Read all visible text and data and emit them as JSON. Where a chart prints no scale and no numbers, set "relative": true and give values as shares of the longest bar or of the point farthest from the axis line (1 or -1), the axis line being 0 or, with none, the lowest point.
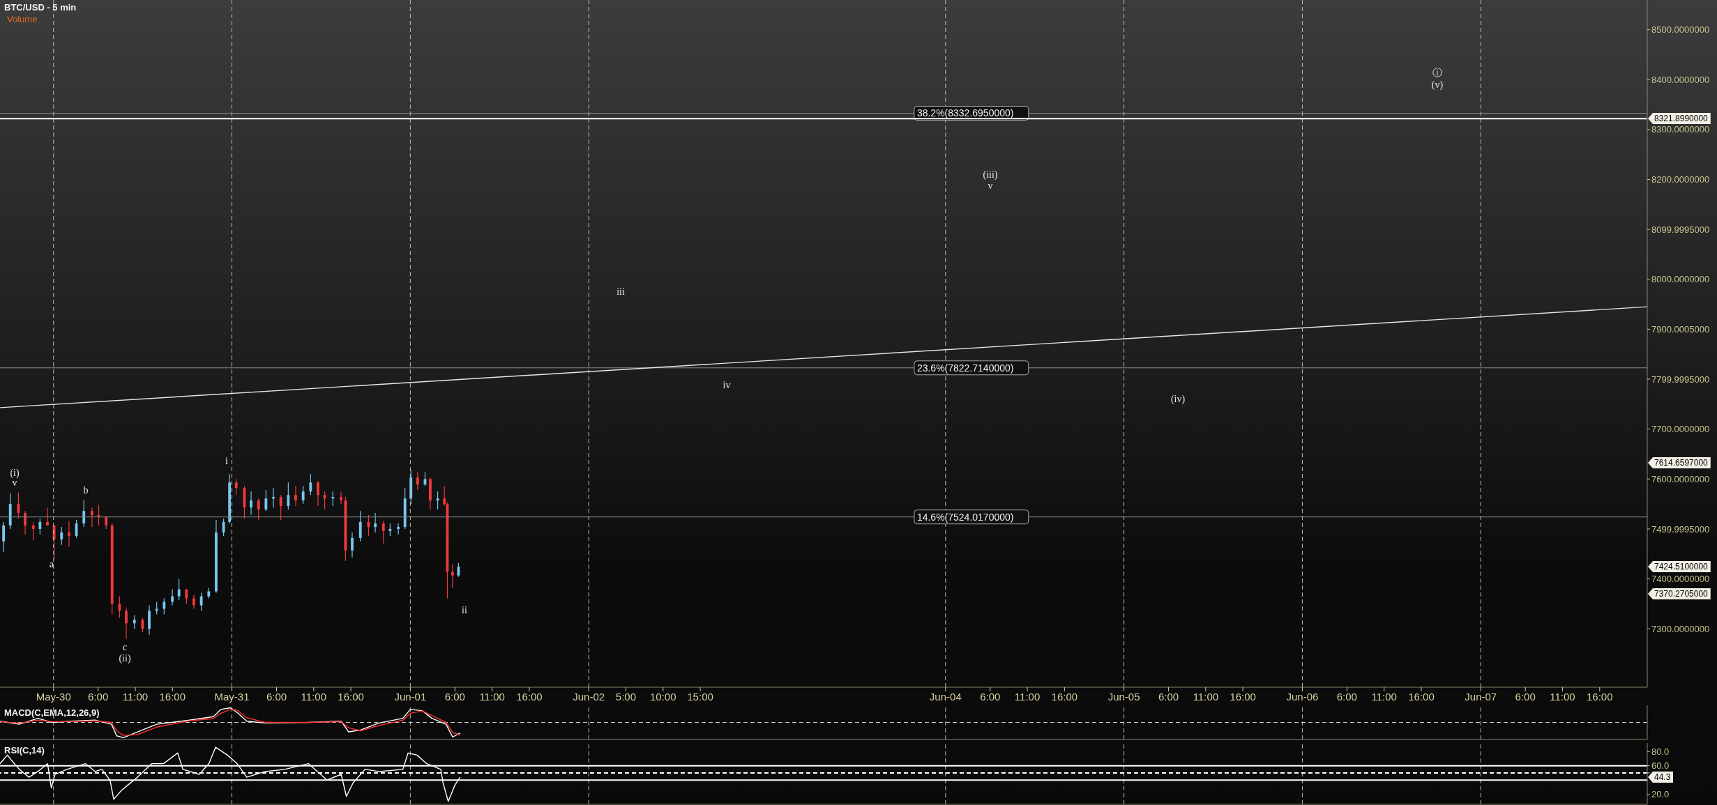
{
  "chart_data": [
    {
      "type": "candlestick",
      "title": "BTC/USD - 5 min",
      "subtitle": "Volume",
      "x": [
        "--05-29T17:18",
        "--05-29T18:12",
        "--05-29T19:18",
        "--05-29T20:12",
        "--05-29T21:18",
        "--05-29T22:12",
        "--05-29T23:12",
        "--05-30T00:06",
        "--05-30T01:06",
        "--05-30T02:06",
        "--05-30T03:06",
        "--05-30T04:06",
        "--05-30T05:12",
        "--05-30T06:06",
        "--05-30T07:06",
        "--05-30T07:54",
        "--05-30T08:54",
        "--05-30T09:48",
        "--05-30T10:54",
        "--05-30T12:00",
        "--05-30T12:54",
        "--05-30T13:54",
        "--05-30T14:54",
        "--05-30T16:00",
        "--05-30T16:54",
        "--05-30T17:54",
        "--05-30T18:54",
        "--05-30T19:54",
        "--05-30T20:54",
        "--05-30T21:54",
        "--05-30T22:54",
        "--05-30T23:42",
        "--05-31T00:36",
        "--05-31T01:42",
        "--05-31T02:36",
        "--05-31T03:36",
        "--05-31T04:36",
        "--05-31T05:36",
        "--05-31T06:36",
        "--05-31T07:36",
        "--05-31T08:36",
        "--05-31T09:36",
        "--05-31T10:36",
        "--05-31T11:36",
        "--05-31T12:30",
        "--05-31T13:36",
        "--05-31T14:42",
        "--05-31T15:18",
        "--05-31T16:12",
        "--05-31T17:18",
        "--05-31T18:24",
        "--05-31T19:18",
        "--05-31T20:24",
        "--05-31T21:18",
        "--05-31T22:24",
        "--05-31T23:18",
        "--06-01T00:06",
        "--06-01T01:00",
        "--06-01T02:00",
        "--06-01T02:42",
        "--06-01T03:42",
        "--06-01T04:36",
        "--06-01T05:00",
        "--06-01T05:42",
        "--06-01T06:30"
      ],
      "ohlc": [
        [
          7475,
          7514,
          7454,
          7507
        ],
        [
          7507,
          7571,
          7500,
          7550
        ],
        [
          7550,
          7573,
          7521,
          7532
        ],
        [
          7532,
          7536,
          7489,
          7507
        ],
        [
          7507,
          7514,
          7477,
          7500
        ],
        [
          7500,
          7521,
          7489,
          7514
        ],
        [
          7514,
          7543,
          7507,
          7507
        ],
        [
          7507,
          7507,
          7439,
          7479
        ],
        [
          7479,
          7504,
          7468,
          7493
        ],
        [
          7493,
          7516,
          7464,
          7486
        ],
        [
          7486,
          7518,
          7482,
          7511
        ],
        [
          7511,
          7558,
          7504,
          7536
        ],
        [
          7536,
          7543,
          7504,
          7528
        ],
        [
          7528,
          7548,
          7507,
          7525
        ],
        [
          7525,
          7525,
          7500,
          7507
        ],
        [
          7507,
          7511,
          7329,
          7350
        ],
        [
          7350,
          7365,
          7322,
          7336
        ],
        [
          7336,
          7343,
          7280,
          7311
        ],
        [
          7311,
          7327,
          7300,
          7318
        ],
        [
          7318,
          7322,
          7293,
          7300
        ],
        [
          7300,
          7347,
          7288,
          7336
        ],
        [
          7336,
          7354,
          7329,
          7340
        ],
        [
          7340,
          7361,
          7329,
          7354
        ],
        [
          7354,
          7379,
          7347,
          7365
        ],
        [
          7365,
          7400,
          7357,
          7379
        ],
        [
          7379,
          7380,
          7350,
          7361
        ],
        [
          7361,
          7368,
          7340,
          7347
        ],
        [
          7347,
          7372,
          7336,
          7365
        ],
        [
          7365,
          7382,
          7361,
          7375
        ],
        [
          7375,
          7518,
          7372,
          7493
        ],
        [
          7493,
          7521,
          7486,
          7514
        ],
        [
          7514,
          7610,
          7511,
          7593
        ],
        [
          7593,
          7600,
          7568,
          7582
        ],
        [
          7582,
          7586,
          7521,
          7543
        ],
        [
          7543,
          7575,
          7528,
          7557
        ],
        [
          7557,
          7561,
          7518,
          7539
        ],
        [
          7539,
          7578,
          7536,
          7561
        ],
        [
          7561,
          7582,
          7543,
          7564
        ],
        [
          7564,
          7568,
          7518,
          7546
        ],
        [
          7546,
          7593,
          7539,
          7568
        ],
        [
          7568,
          7586,
          7546,
          7557
        ],
        [
          7557,
          7586,
          7550,
          7575
        ],
        [
          7575,
          7610,
          7568,
          7593
        ],
        [
          7593,
          7596,
          7546,
          7568
        ],
        [
          7568,
          7575,
          7539,
          7561
        ],
        [
          7561,
          7575,
          7546,
          7564
        ],
        [
          7564,
          7575,
          7550,
          7557
        ],
        [
          7557,
          7564,
          7436,
          7457
        ],
        [
          7457,
          7493,
          7443,
          7482
        ],
        [
          7482,
          7536,
          7475,
          7514
        ],
        [
          7514,
          7528,
          7486,
          7504
        ],
        [
          7504,
          7532,
          7493,
          7511
        ],
        [
          7511,
          7516,
          7471,
          7496
        ],
        [
          7496,
          7511,
          7486,
          7500
        ],
        [
          7500,
          7511,
          7489,
          7504
        ],
        [
          7504,
          7582,
          7500,
          7561
        ],
        [
          7561,
          7618,
          7550,
          7603
        ],
        [
          7603,
          7614,
          7578,
          7589
        ],
        [
          7589,
          7614,
          7586,
          7600
        ],
        [
          7600,
          7603,
          7539,
          7557
        ],
        [
          7557,
          7575,
          7539,
          7561
        ],
        [
          7561,
          7586,
          7546,
          7550
        ],
        [
          7550,
          7553,
          7361,
          7414
        ],
        [
          7414,
          7429,
          7382,
          7407
        ],
        [
          7407,
          7432,
          7404,
          7424.51
        ]
      ],
      "colors": [
        "#79c6f2",
        "#79c6f2",
        "#f0393c",
        "#f0393c",
        "#f0393c",
        "#79c6f2",
        "#f0393c",
        "#f0393c",
        "#79c6f2",
        "#f0393c",
        "#79c6f2",
        "#79c6f2",
        "#f0393c",
        "#f0393c",
        "#f0393c",
        "#f0393c",
        "#f0393c",
        "#f0393c",
        "#79c6f2",
        "#f0393c",
        "#79c6f2",
        "#79c6f2",
        "#79c6f2",
        "#79c6f2",
        "#79c6f2",
        "#f0393c",
        "#f0393c",
        "#79c6f2",
        "#79c6f2",
        "#79c6f2",
        "#79c6f2",
        "#79c6f2",
        "#f0393c",
        "#f0393c",
        "#79c6f2",
        "#f0393c",
        "#79c6f2",
        "#79c6f2",
        "#f0393c",
        "#79c6f2",
        "#f0393c",
        "#79c6f2",
        "#79c6f2",
        "#f0393c",
        "#f0393c",
        "#79c6f2",
        "#f0393c",
        "#f0393c",
        "#79c6f2",
        "#79c6f2",
        "#f0393c",
        "#79c6f2",
        "#f0393c",
        "#79c6f2",
        "#79c6f2",
        "#79c6f2",
        "#79c6f2",
        "#f0393c",
        "#79c6f2",
        "#f0393c",
        "#79c6f2",
        "#f0393c",
        "#f0393c",
        "#f0393c",
        "#79c6f2"
      ],
      "series": [
        {
          "type": "line",
          "color": "#e6e6e6",
          "x": [
            "--05-29T16:48",
            "--06-07T22:24"
          ],
          "values": [
            7743,
            7945
          ]
        }
      ],
      "xlim": [
        "--05-29T16:48",
        "--06-07T22:24"
      ],
      "xticks": [
        {
          "value": "--05-30T00:00",
          "label": "May-30"
        },
        {
          "value": "--05-30T06:00",
          "label": "6:00"
        },
        {
          "value": "--05-30T11:00",
          "label": "11:00"
        },
        {
          "value": "--05-30T16:00",
          "label": "16:00"
        },
        {
          "value": "--05-31T00:00",
          "label": "May-31"
        },
        {
          "value": "--05-31T06:00",
          "label": "6:00"
        },
        {
          "value": "--05-31T11:00",
          "label": "11:00"
        },
        {
          "value": "--05-31T16:00",
          "label": "16:00"
        },
        {
          "value": "--06-01T00:00",
          "label": "Jun-01"
        },
        {
          "value": "--06-01T06:00",
          "label": "6:00"
        },
        {
          "value": "--06-01T11:00",
          "label": "11:00"
        },
        {
          "value": "--06-01T16:00",
          "label": "16:00"
        },
        {
          "value": "--06-02T00:00",
          "label": "Jun-02"
        },
        {
          "value": "--06-02T05:00",
          "label": "5:00"
        },
        {
          "value": "--06-02T10:00",
          "label": "10:00"
        },
        {
          "value": "--06-02T15:00",
          "label": "15:00"
        },
        {
          "value": "--06-04T00:00",
          "label": "Jun-04"
        },
        {
          "value": "--06-04T06:00",
          "label": "6:00"
        },
        {
          "value": "--06-04T11:00",
          "label": "11:00"
        },
        {
          "value": "--06-04T16:00",
          "label": "16:00"
        },
        {
          "value": "--06-05T00:00",
          "label": "Jun-05"
        },
        {
          "value": "--06-05T06:00",
          "label": "6:00"
        },
        {
          "value": "--06-05T11:00",
          "label": "11:00"
        },
        {
          "value": "--06-05T16:00",
          "label": "16:00"
        },
        {
          "value": "--06-06T00:00",
          "label": "Jun-06"
        },
        {
          "value": "--06-06T06:00",
          "label": "6:00"
        },
        {
          "value": "--06-06T11:00",
          "label": "11:00"
        },
        {
          "value": "--06-06T16:00",
          "label": "16:00"
        },
        {
          "value": "--06-07T00:00",
          "label": "Jun-07"
        },
        {
          "value": "--06-07T06:00",
          "label": "6:00"
        },
        {
          "value": "--06-07T11:00",
          "label": "11:00"
        },
        {
          "value": "--06-07T16:00",
          "label": "16:00"
        }
      ],
      "ylim": [
        7183,
        8559.5
      ],
      "yticks": [
        {
          "value": 8500,
          "label": "8500.0000000"
        },
        {
          "value": 8400,
          "label": "8400.0000000"
        },
        {
          "value": 8300,
          "label": "8300.0000000"
        },
        {
          "value": 8200,
          "label": "8200.0000000"
        },
        {
          "value": 8099.9995,
          "label": "8099.9995000"
        },
        {
          "value": 8000,
          "label": "8000.0000000"
        },
        {
          "value": 7900.0005,
          "label": "7900.0005000"
        },
        {
          "value": 7799.9995,
          "label": "7799.9995000"
        },
        {
          "value": 7700,
          "label": "7700.0000000"
        },
        {
          "value": 7600,
          "label": "7600.0000000"
        },
        {
          "value": 7499.9995,
          "label": "7499.9995000"
        },
        {
          "value": 7400,
          "label": "7400.0000000"
        },
        {
          "value": 7300,
          "label": "7300.0000000"
        }
      ],
      "grid": "x",
      "ref_lines": [
        {
          "axis": "y",
          "value": 8332.695,
          "label": "38.2%(8332.6950000)",
          "color": "#8c8c8c"
        },
        {
          "axis": "y",
          "value": 8321.899,
          "color": "#ffffff"
        },
        {
          "axis": "y",
          "value": 7822.714,
          "label": "23.6%(7822.7140000)",
          "color": "#8c8c8c"
        },
        {
          "axis": "y",
          "value": 7524.017,
          "label": "14.6%(7524.0170000)",
          "color": "#8c8c8c"
        }
      ],
      "annotations": [
        "(i)",
        "v",
        "a",
        "b",
        "c",
        "(ii)",
        "i",
        "ii",
        "iii",
        "iv",
        "(iii)",
        "v",
        "(iv)",
        "ⓘ",
        "(v)",
        "8321.8990000",
        "7614.6597000",
        "7424.5100000",
        "7370.2705000"
      ]
    },
    {
      "type": "line",
      "title": "MACD(C,EMA,12,26,9)",
      "relative": true,
      "tick_labels": false,
      "grid": "x",
      "ref_lines": [
        {
          "axis": "y",
          "value": 0,
          "color": "#cccccc",
          "line_style": "dashed"
        }
      ],
      "x": [
        "--05-29T16:48",
        "--05-29T19:24",
        "--05-29T21:54",
        "--05-29T23:48",
        "--05-30T02:24",
        "--05-30T05:36",
        "--05-30T07:48",
        "--05-30T08:30",
        "--05-30T09:24",
        "--05-30T11:18",
        "--05-30T13:54",
        "--05-30T18:18",
        "--05-30T21:30",
        "--05-30T22:30",
        "--05-30T23:48",
        "--05-31T00:42",
        "--05-31T02:00",
        "--05-31T04:30",
        "--05-31T10:18",
        "--05-31T14:42",
        "--05-31T15:42",
        "--05-31T17:18",
        "--05-31T19:48",
        "--05-31T23:00",
        "--06-01T00:00",
        "--06-01T01:36",
        "--06-01T02:54",
        "--06-01T04:48",
        "--06-01T05:42",
        "--06-01T06:42"
      ],
      "xlim": [
        "--05-29T16:48",
        "--06-07T22:24"
      ],
      "xticks": [
        "--05-30T00:00",
        "--05-31T00:00",
        "--06-01T00:00",
        "--06-02T00:00",
        "--06-04T00:00",
        "--06-05T00:00",
        "--06-06T00:00",
        "--06-07T00:00"
      ],
      "series": [
        {
          "color": "#ffffff",
          "values": [
            0.08,
            -0.12,
            0.27,
            0,
            0.08,
            0.15,
            -0.12,
            -0.88,
            -1,
            -0.62,
            -0.12,
            0.15,
            0.38,
            0.85,
            0.96,
            0.65,
            0.08,
            -0.04,
            0,
            0.08,
            -0.62,
            -0.5,
            -0.04,
            0.27,
            0.85,
            0.77,
            0.27,
            -0.12,
            -0.96,
            -0.69
          ]
        },
        {
          "color": "#ff3030",
          "values": [
            0.05,
            -0.05,
            0.15,
            0.05,
            0.05,
            0.1,
            0,
            -0.55,
            -0.85,
            -0.8,
            -0.3,
            0.1,
            0.25,
            0.6,
            0.85,
            0.8,
            0.3,
            0,
            0,
            0.05,
            -0.35,
            -0.55,
            -0.2,
            0.15,
            0.6,
            0.75,
            0.45,
            0,
            -0.65,
            -0.85
          ]
        }
      ]
    },
    {
      "type": "line",
      "title": "RSI(C,14)",
      "tick_labels": "y",
      "grid": "x",
      "color": "#ffffff",
      "x": [
        "--05-29T16:48",
        "--05-29T17:48",
        "--05-29T18:24",
        "--05-29T19:24",
        "--05-29T20:42",
        "--05-29T21:54",
        "--05-29T23:12",
        "--05-29T23:42",
        "--05-30T00:12",
        "--05-30T01:48",
        "--05-30T04:18",
        "--05-30T05:36",
        "--05-30T06:30",
        "--05-30T07:36",
        "--05-30T08:06",
        "--05-30T09:06",
        "--05-30T10:00",
        "--05-30T11:18",
        "--05-30T13:12",
        "--05-30T14:48",
        "--05-30T16:42",
        "--05-30T17:24",
        "--05-30T19:36",
        "--05-30T20:54",
        "--05-30T21:48",
        "--05-30T23:24",
        "--05-31T00:42",
        "--05-31T02:00",
        "--05-31T04:30",
        "--05-31T07:06",
        "--05-31T10:18",
        "--05-31T12:48",
        "--05-31T14:42",
        "--05-31T15:24",
        "--05-31T16:18",
        "--05-31T17:54",
        "--05-31T19:48",
        "--05-31T23:00",
        "--05-31T23:42",
        "--06-01T00:54",
        "--06-01T02:12",
        "--06-01T04:06",
        "--06-01T04:24",
        "--06-01T05:06",
        "--06-01T06:00",
        "--06-01T06:42"
      ],
      "values": [
        63,
        75,
        67,
        55,
        44,
        52,
        63,
        29,
        48,
        55,
        63,
        52,
        55,
        40,
        13,
        25,
        33,
        44,
        63,
        63,
        78,
        55,
        48,
        63,
        86,
        75,
        63,
        44,
        52,
        55,
        63,
        40,
        48,
        17,
        36,
        55,
        52,
        55,
        78,
        75,
        63,
        55,
        36,
        10,
        33,
        44.3
      ],
      "xlim": [
        "--05-29T16:48",
        "--06-07T22:24"
      ],
      "xticks": [
        "--05-30T00:00",
        "--05-31T00:00",
        "--06-01T00:00",
        "--06-02T00:00",
        "--06-04T00:00",
        "--06-05T00:00",
        "--06-06T00:00",
        "--06-07T00:00"
      ],
      "ylim": [
        6,
        92
      ],
      "yticks": [
        {
          "value": 80,
          "label": "80.0"
        },
        {
          "value": 60,
          "label": "60.0"
        },
        {
          "value": 50,
          "label": null
        },
        {
          "value": 20,
          "label": "20.0"
        }
      ],
      "ref_lines": [
        {
          "axis": "y",
          "value": 60,
          "color": "#ffffff"
        },
        {
          "axis": "y",
          "value": 50,
          "color": "#ffffff",
          "line_style": "dashed"
        },
        {
          "axis": "y",
          "value": 40,
          "color": "#ffffff"
        }
      ],
      "annotations": [
        "44.3"
      ]
    }
  ]
}
